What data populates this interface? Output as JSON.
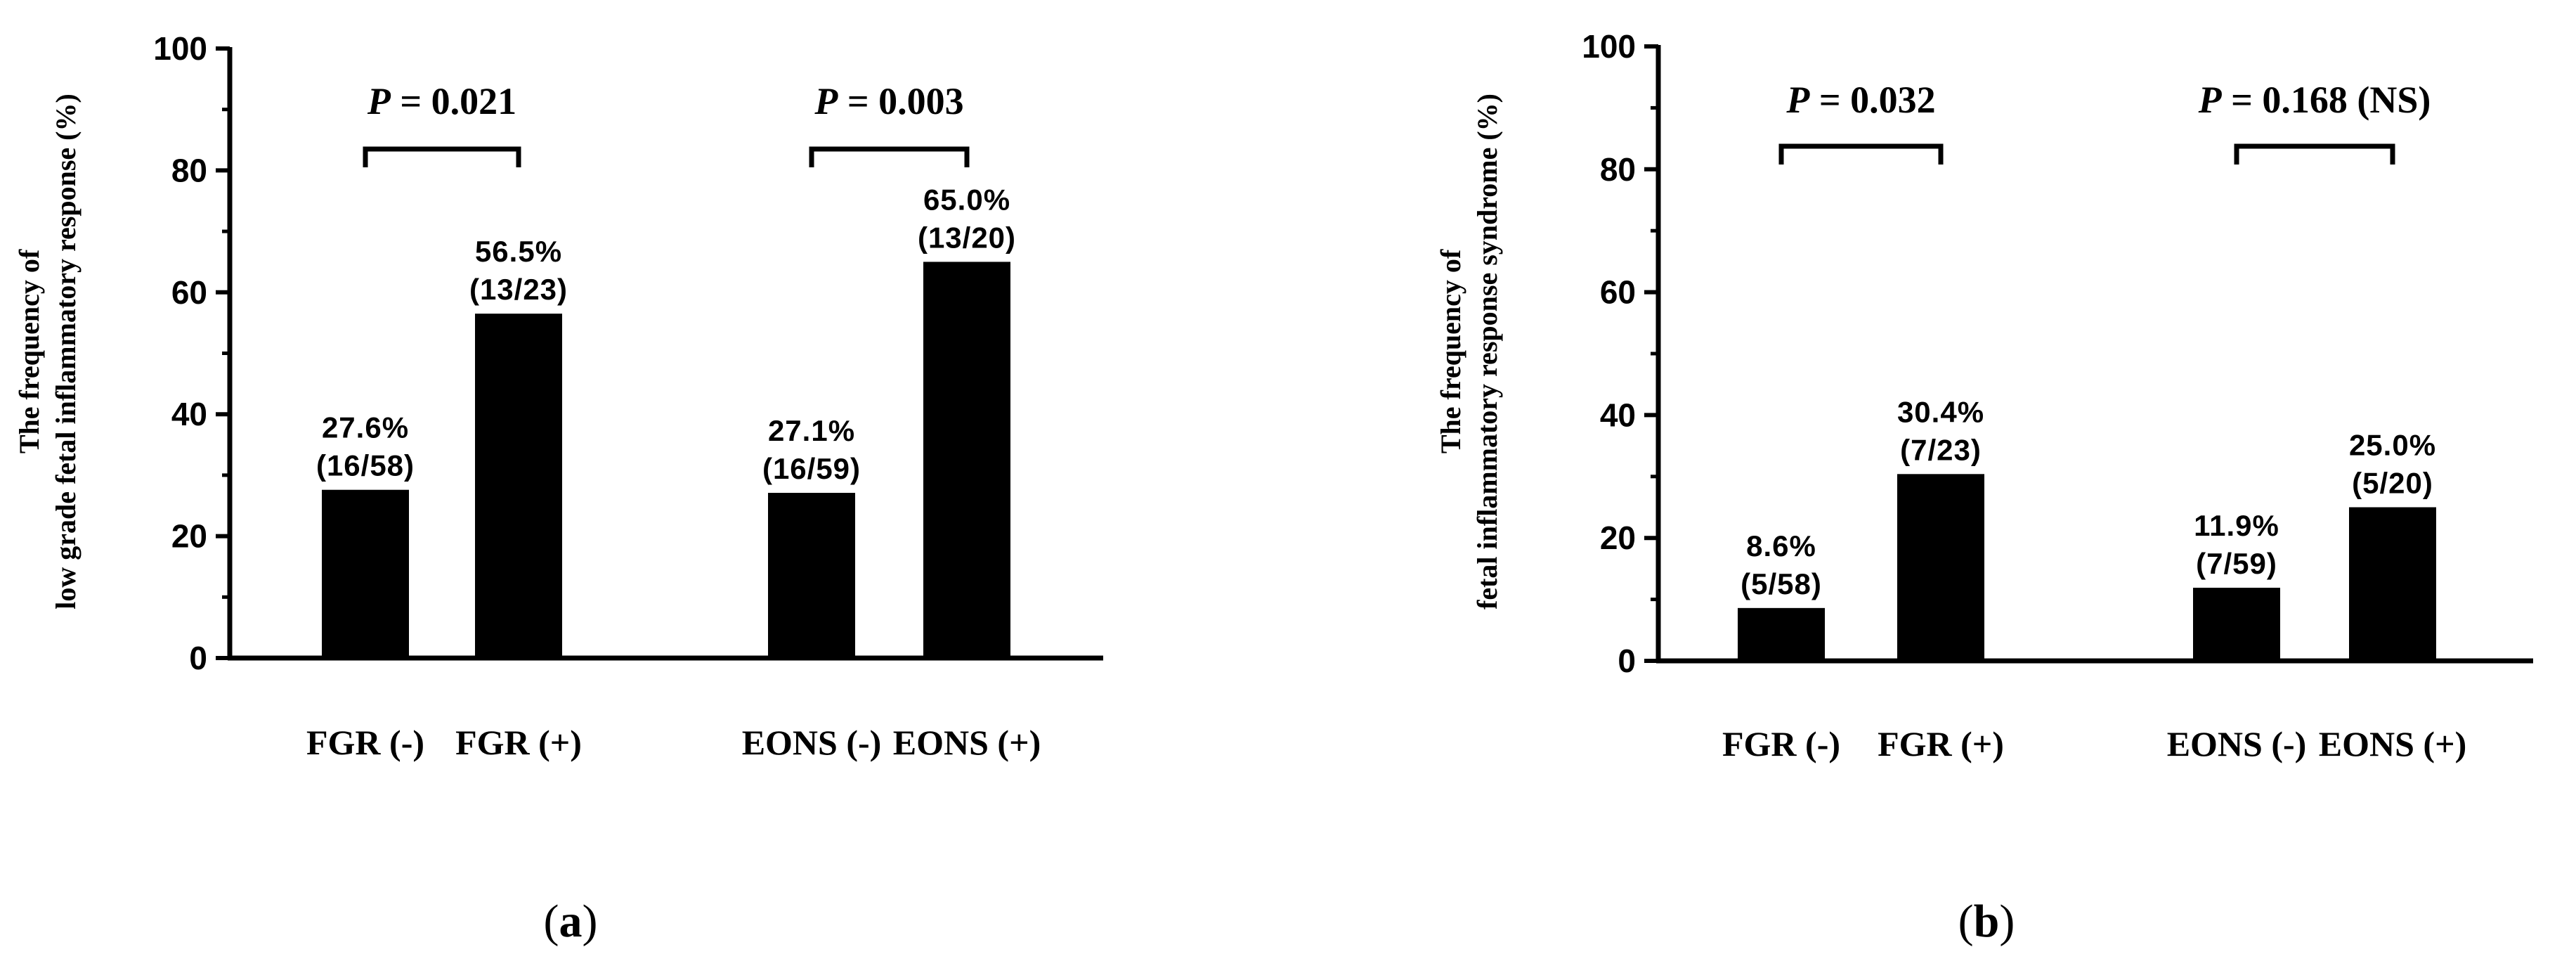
{
  "chart_data": [
    {
      "type": "bar",
      "panel_label": "a",
      "ylabel_line1": "The frequency of",
      "ylabel_line2": "low grade fetal inflammatory response (%)",
      "ylim": [
        0,
        100
      ],
      "yticks": [
        "0",
        "20",
        "40",
        "60",
        "80",
        "100"
      ],
      "categories": [
        "FGR (-)",
        "FGR (+)",
        "EONS (-)",
        "EONS (+)"
      ],
      "values": [
        27.6,
        56.5,
        27.1,
        65.0
      ],
      "value_labels": [
        "27.6%",
        "56.5%",
        "27.1%",
        "65.0%"
      ],
      "count_labels": [
        "(16/58)",
        "(13/23)",
        "(16/59)",
        "(13/20)"
      ],
      "comparisons": [
        {
          "pairs": [
            0,
            1
          ],
          "p_prefix": "P",
          "p_text": " = 0.021"
        },
        {
          "pairs": [
            2,
            3
          ],
          "p_prefix": "P",
          "p_text": "  = 0.003"
        }
      ]
    },
    {
      "type": "bar",
      "panel_label": "b",
      "ylabel_line1": "The frequency of",
      "ylabel_line2": "fetal inflammatory response syndrome  (%)",
      "ylim": [
        0,
        100
      ],
      "yticks": [
        "0",
        "20",
        "40",
        "60",
        "80",
        "100"
      ],
      "categories": [
        "FGR (-)",
        "FGR (+)",
        "EONS (-)",
        "EONS (+)"
      ],
      "values": [
        8.6,
        30.4,
        11.9,
        25.0
      ],
      "value_labels": [
        "8.6%",
        "30.4%",
        "11.9%",
        "25.0%"
      ],
      "count_labels": [
        "(5/58)",
        "(7/23)",
        "(7/59)",
        "(5/20)"
      ],
      "comparisons": [
        {
          "pairs": [
            0,
            1
          ],
          "p_prefix": "P",
          "p_text": " = 0.032"
        },
        {
          "pairs": [
            2,
            3
          ],
          "p_prefix": "P",
          "p_text": " = 0.168 (NS)"
        }
      ]
    }
  ],
  "colors": {
    "bar": "#000000",
    "axis": "#000000"
  }
}
